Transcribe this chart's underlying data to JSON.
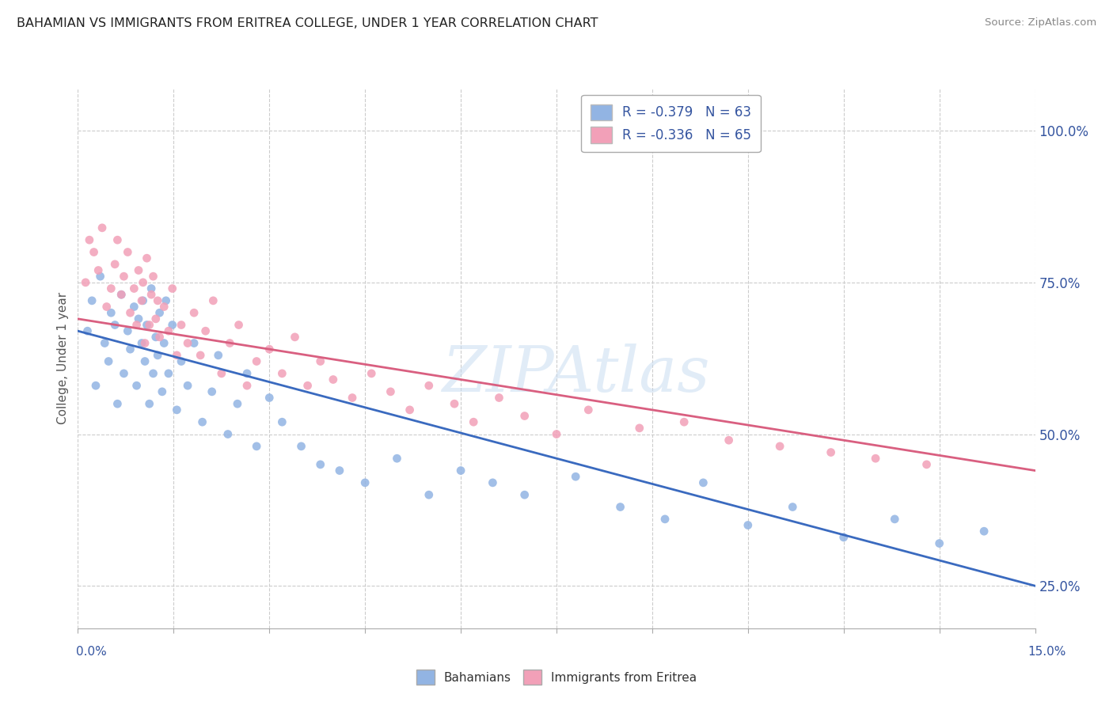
{
  "title": "BAHAMIAN VS IMMIGRANTS FROM ERITREA COLLEGE, UNDER 1 YEAR CORRELATION CHART",
  "source": "Source: ZipAtlas.com",
  "ylabel": "College, Under 1 year",
  "xlim": [
    0.0,
    15.0
  ],
  "ylim": [
    18.0,
    107.0
  ],
  "yticks": [
    25.0,
    50.0,
    75.0,
    100.0
  ],
  "ytick_labels": [
    "25.0%",
    "50.0%",
    "75.0%",
    "100.0%"
  ],
  "legend_r1": "R = -0.379",
  "legend_n1": "N = 63",
  "legend_r2": "R = -0.336",
  "legend_n2": "N = 65",
  "color_blue": "#92b4e3",
  "color_pink": "#f2a0b8",
  "color_blue_line": "#3a6abf",
  "color_pink_line": "#d95f80",
  "color_text": "#3555a0",
  "watermark": "ZIPAtlas",
  "bahamian_x": [
    0.15,
    0.22,
    0.28,
    0.35,
    0.42,
    0.48,
    0.52,
    0.58,
    0.62,
    0.68,
    0.72,
    0.78,
    0.82,
    0.88,
    0.92,
    0.95,
    1.0,
    1.02,
    1.05,
    1.08,
    1.12,
    1.15,
    1.18,
    1.22,
    1.25,
    1.28,
    1.32,
    1.35,
    1.38,
    1.42,
    1.48,
    1.55,
    1.62,
    1.72,
    1.82,
    1.95,
    2.1,
    2.2,
    2.35,
    2.5,
    2.65,
    2.8,
    3.0,
    3.2,
    3.5,
    3.8,
    4.1,
    4.5,
    5.0,
    5.5,
    6.0,
    6.5,
    7.0,
    7.8,
    8.5,
    9.2,
    9.8,
    10.5,
    11.2,
    12.0,
    12.8,
    13.5,
    14.2
  ],
  "bahamian_y": [
    67,
    72,
    58,
    76,
    65,
    62,
    70,
    68,
    55,
    73,
    60,
    67,
    64,
    71,
    58,
    69,
    65,
    72,
    62,
    68,
    55,
    74,
    60,
    66,
    63,
    70,
    57,
    65,
    72,
    60,
    68,
    54,
    62,
    58,
    65,
    52,
    57,
    63,
    50,
    55,
    60,
    48,
    56,
    52,
    48,
    45,
    44,
    42,
    46,
    40,
    44,
    42,
    40,
    43,
    38,
    36,
    42,
    35,
    38,
    33,
    36,
    32,
    34
  ],
  "eritrea_x": [
    0.12,
    0.18,
    0.25,
    0.32,
    0.38,
    0.45,
    0.52,
    0.58,
    0.62,
    0.68,
    0.72,
    0.78,
    0.82,
    0.88,
    0.92,
    0.95,
    1.0,
    1.02,
    1.05,
    1.08,
    1.12,
    1.15,
    1.18,
    1.22,
    1.25,
    1.28,
    1.35,
    1.42,
    1.48,
    1.55,
    1.62,
    1.72,
    1.82,
    1.92,
    2.0,
    2.12,
    2.25,
    2.38,
    2.52,
    2.65,
    2.8,
    3.0,
    3.2,
    3.4,
    3.6,
    3.8,
    4.0,
    4.3,
    4.6,
    4.9,
    5.2,
    5.5,
    5.9,
    6.2,
    6.6,
    7.0,
    7.5,
    8.0,
    8.8,
    9.5,
    10.2,
    11.0,
    11.8,
    12.5,
    13.3
  ],
  "eritrea_y": [
    75,
    82,
    80,
    77,
    84,
    71,
    74,
    78,
    82,
    73,
    76,
    80,
    70,
    74,
    68,
    77,
    72,
    75,
    65,
    79,
    68,
    73,
    76,
    69,
    72,
    66,
    71,
    67,
    74,
    63,
    68,
    65,
    70,
    63,
    67,
    72,
    60,
    65,
    68,
    58,
    62,
    64,
    60,
    66,
    58,
    62,
    59,
    56,
    60,
    57,
    54,
    58,
    55,
    52,
    56,
    53,
    50,
    54,
    51,
    52,
    49,
    48,
    47,
    46,
    45
  ]
}
